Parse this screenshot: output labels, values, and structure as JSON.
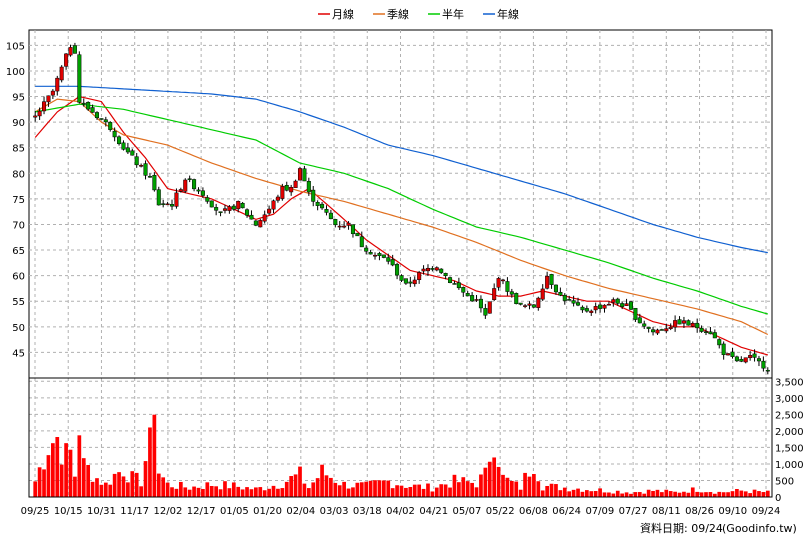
{
  "chart_data": {
    "type": "candlestick",
    "legend": [
      {
        "label": "月線",
        "color": "#e00000"
      },
      {
        "label": "季線",
        "color": "#e07020"
      },
      {
        "label": "半年",
        "color": "#00cc00"
      },
      {
        "label": "年線",
        "color": "#1060d0"
      }
    ],
    "colors": {
      "up": "#e00000",
      "down": "#00a000",
      "volume": "#ff0000",
      "grid": "#b0b0b0"
    },
    "price_axis": {
      "ticks": [
        45,
        50,
        55,
        60,
        65,
        70,
        75,
        80,
        85,
        90,
        95,
        100,
        105
      ],
      "ylim": [
        40,
        108
      ]
    },
    "volume_axis": {
      "ticks": [
        "0",
        "500",
        "1,000",
        "1,500",
        "2,000",
        "2,500",
        "3,000",
        "3,500"
      ],
      "ylim": [
        0,
        3600
      ]
    },
    "x_ticks": [
      "09/25",
      "10/15",
      "10/31",
      "11/17",
      "12/02",
      "12/17",
      "01/05",
      "01/20",
      "02/04",
      "03/03",
      "03/18",
      "04/02",
      "04/21",
      "05/07",
      "05/22",
      "06/08",
      "06/24",
      "07/09",
      "07/27",
      "08/11",
      "08/26",
      "09/10",
      "09/24"
    ],
    "close_keypoints": [
      [
        0,
        91
      ],
      [
        4,
        96
      ],
      [
        8,
        105
      ],
      [
        9,
        104
      ],
      [
        10,
        94
      ],
      [
        13,
        92
      ],
      [
        17,
        89
      ],
      [
        20,
        85
      ],
      [
        23,
        82
      ],
      [
        26,
        79
      ],
      [
        28,
        74
      ],
      [
        31,
        74
      ],
      [
        34,
        79
      ],
      [
        38,
        76
      ],
      [
        42,
        72
      ],
      [
        46,
        74
      ],
      [
        50,
        70
      ],
      [
        53,
        73
      ],
      [
        56,
        77
      ],
      [
        58,
        77
      ],
      [
        60,
        81
      ],
      [
        62,
        76
      ],
      [
        65,
        73
      ],
      [
        68,
        70
      ],
      [
        71,
        70
      ],
      [
        74,
        66
      ],
      [
        77,
        64
      ],
      [
        80,
        63
      ],
      [
        84,
        58
      ],
      [
        88,
        61
      ],
      [
        91,
        62
      ],
      [
        94,
        59
      ],
      [
        98,
        56
      ],
      [
        100,
        55
      ],
      [
        102,
        52
      ],
      [
        105,
        60
      ],
      [
        108,
        56
      ],
      [
        110,
        54
      ],
      [
        113,
        54
      ],
      [
        116,
        60
      ],
      [
        119,
        56
      ],
      [
        121,
        55
      ],
      [
        124,
        53
      ],
      [
        128,
        54
      ],
      [
        131,
        55
      ],
      [
        134,
        54
      ],
      [
        137,
        51
      ],
      [
        140,
        49
      ],
      [
        143,
        50
      ],
      [
        146,
        51
      ],
      [
        150,
        50
      ],
      [
        153,
        49
      ],
      [
        156,
        45
      ],
      [
        159,
        43
      ],
      [
        162,
        44
      ],
      [
        166,
        42
      ]
    ],
    "ma_keypoints": {
      "月線": [
        [
          0,
          87
        ],
        [
          5,
          92
        ],
        [
          10,
          95
        ],
        [
          15,
          94
        ],
        [
          20,
          88
        ],
        [
          25,
          83
        ],
        [
          30,
          77
        ],
        [
          35,
          76
        ],
        [
          40,
          75
        ],
        [
          45,
          73
        ],
        [
          50,
          71
        ],
        [
          54,
          72
        ],
        [
          58,
          75
        ],
        [
          62,
          77
        ],
        [
          66,
          74
        ],
        [
          70,
          71
        ],
        [
          75,
          67
        ],
        [
          80,
          64
        ],
        [
          85,
          61
        ],
        [
          90,
          60
        ],
        [
          95,
          59
        ],
        [
          100,
          57
        ],
        [
          105,
          56
        ],
        [
          110,
          56
        ],
        [
          115,
          57
        ],
        [
          120,
          56
        ],
        [
          125,
          55
        ],
        [
          130,
          55
        ],
        [
          135,
          53
        ],
        [
          140,
          51
        ],
        [
          145,
          50
        ],
        [
          150,
          50
        ],
        [
          155,
          48
        ],
        [
          160,
          46
        ],
        [
          166,
          44.5
        ]
      ],
      "季線": [
        [
          0,
          92
        ],
        [
          5,
          94.5
        ],
        [
          10,
          94
        ],
        [
          15,
          90
        ],
        [
          20,
          87.5
        ],
        [
          30,
          85.5
        ],
        [
          40,
          82
        ],
        [
          50,
          79
        ],
        [
          60,
          76.5
        ],
        [
          70,
          74.5
        ],
        [
          80,
          72
        ],
        [
          90,
          69.5
        ],
        [
          100,
          66.5
        ],
        [
          110,
          63
        ],
        [
          120,
          60
        ],
        [
          130,
          57.5
        ],
        [
          140,
          55.5
        ],
        [
          150,
          53.5
        ],
        [
          160,
          51
        ],
        [
          166,
          48.5
        ]
      ],
      "半年": [
        [
          0,
          92
        ],
        [
          10,
          93.5
        ],
        [
          20,
          92.5
        ],
        [
          30,
          90.5
        ],
        [
          40,
          88.5
        ],
        [
          50,
          86.5
        ],
        [
          60,
          82
        ],
        [
          70,
          80
        ],
        [
          80,
          77
        ],
        [
          90,
          73
        ],
        [
          100,
          69.5
        ],
        [
          110,
          67.5
        ],
        [
          120,
          65
        ],
        [
          130,
          62.5
        ],
        [
          140,
          59.5
        ],
        [
          150,
          57
        ],
        [
          160,
          54
        ],
        [
          166,
          52.5
        ]
      ],
      "年線": [
        [
          0,
          97
        ],
        [
          10,
          97
        ],
        [
          20,
          96.5
        ],
        [
          30,
          96
        ],
        [
          40,
          95.5
        ],
        [
          50,
          94.5
        ],
        [
          60,
          92
        ],
        [
          70,
          89
        ],
        [
          80,
          85.5
        ],
        [
          90,
          83.5
        ],
        [
          100,
          81
        ],
        [
          110,
          78.5
        ],
        [
          120,
          76
        ],
        [
          130,
          73
        ],
        [
          140,
          70
        ],
        [
          150,
          67.5
        ],
        [
          160,
          65.5
        ],
        [
          166,
          64.5
        ]
      ]
    },
    "volume_keypoints": [
      [
        0,
        500
      ],
      [
        3,
        1700
      ],
      [
        5,
        1900
      ],
      [
        7,
        1300
      ],
      [
        8,
        1400
      ],
      [
        9,
        700
      ],
      [
        10,
        2400
      ],
      [
        11,
        1000
      ],
      [
        12,
        900
      ],
      [
        14,
        600
      ],
      [
        16,
        400
      ],
      [
        18,
        700
      ],
      [
        20,
        900
      ],
      [
        22,
        600
      ],
      [
        24,
        500
      ],
      [
        25,
        1200
      ],
      [
        26,
        1600
      ],
      [
        27,
        3550
      ],
      [
        28,
        800
      ],
      [
        30,
        400
      ],
      [
        35,
        300
      ],
      [
        40,
        400
      ],
      [
        45,
        350
      ],
      [
        50,
        250
      ],
      [
        55,
        400
      ],
      [
        60,
        700
      ],
      [
        62,
        300
      ],
      [
        65,
        800
      ],
      [
        70,
        400
      ],
      [
        75,
        350
      ],
      [
        80,
        500
      ],
      [
        85,
        350
      ],
      [
        90,
        300
      ],
      [
        95,
        500
      ],
      [
        100,
        450
      ],
      [
        102,
        700
      ],
      [
        104,
        2100
      ],
      [
        106,
        600
      ],
      [
        110,
        300
      ],
      [
        113,
        1200
      ],
      [
        115,
        350
      ],
      [
        120,
        300
      ],
      [
        125,
        250
      ],
      [
        130,
        200
      ],
      [
        135,
        150
      ],
      [
        140,
        200
      ],
      [
        145,
        150
      ],
      [
        150,
        250
      ],
      [
        155,
        150
      ],
      [
        160,
        200
      ],
      [
        166,
        150
      ]
    ],
    "candle_count": 167,
    "footer": "資料日期: 09/24",
    "watermark": "(Goodinfo.tw)"
  }
}
